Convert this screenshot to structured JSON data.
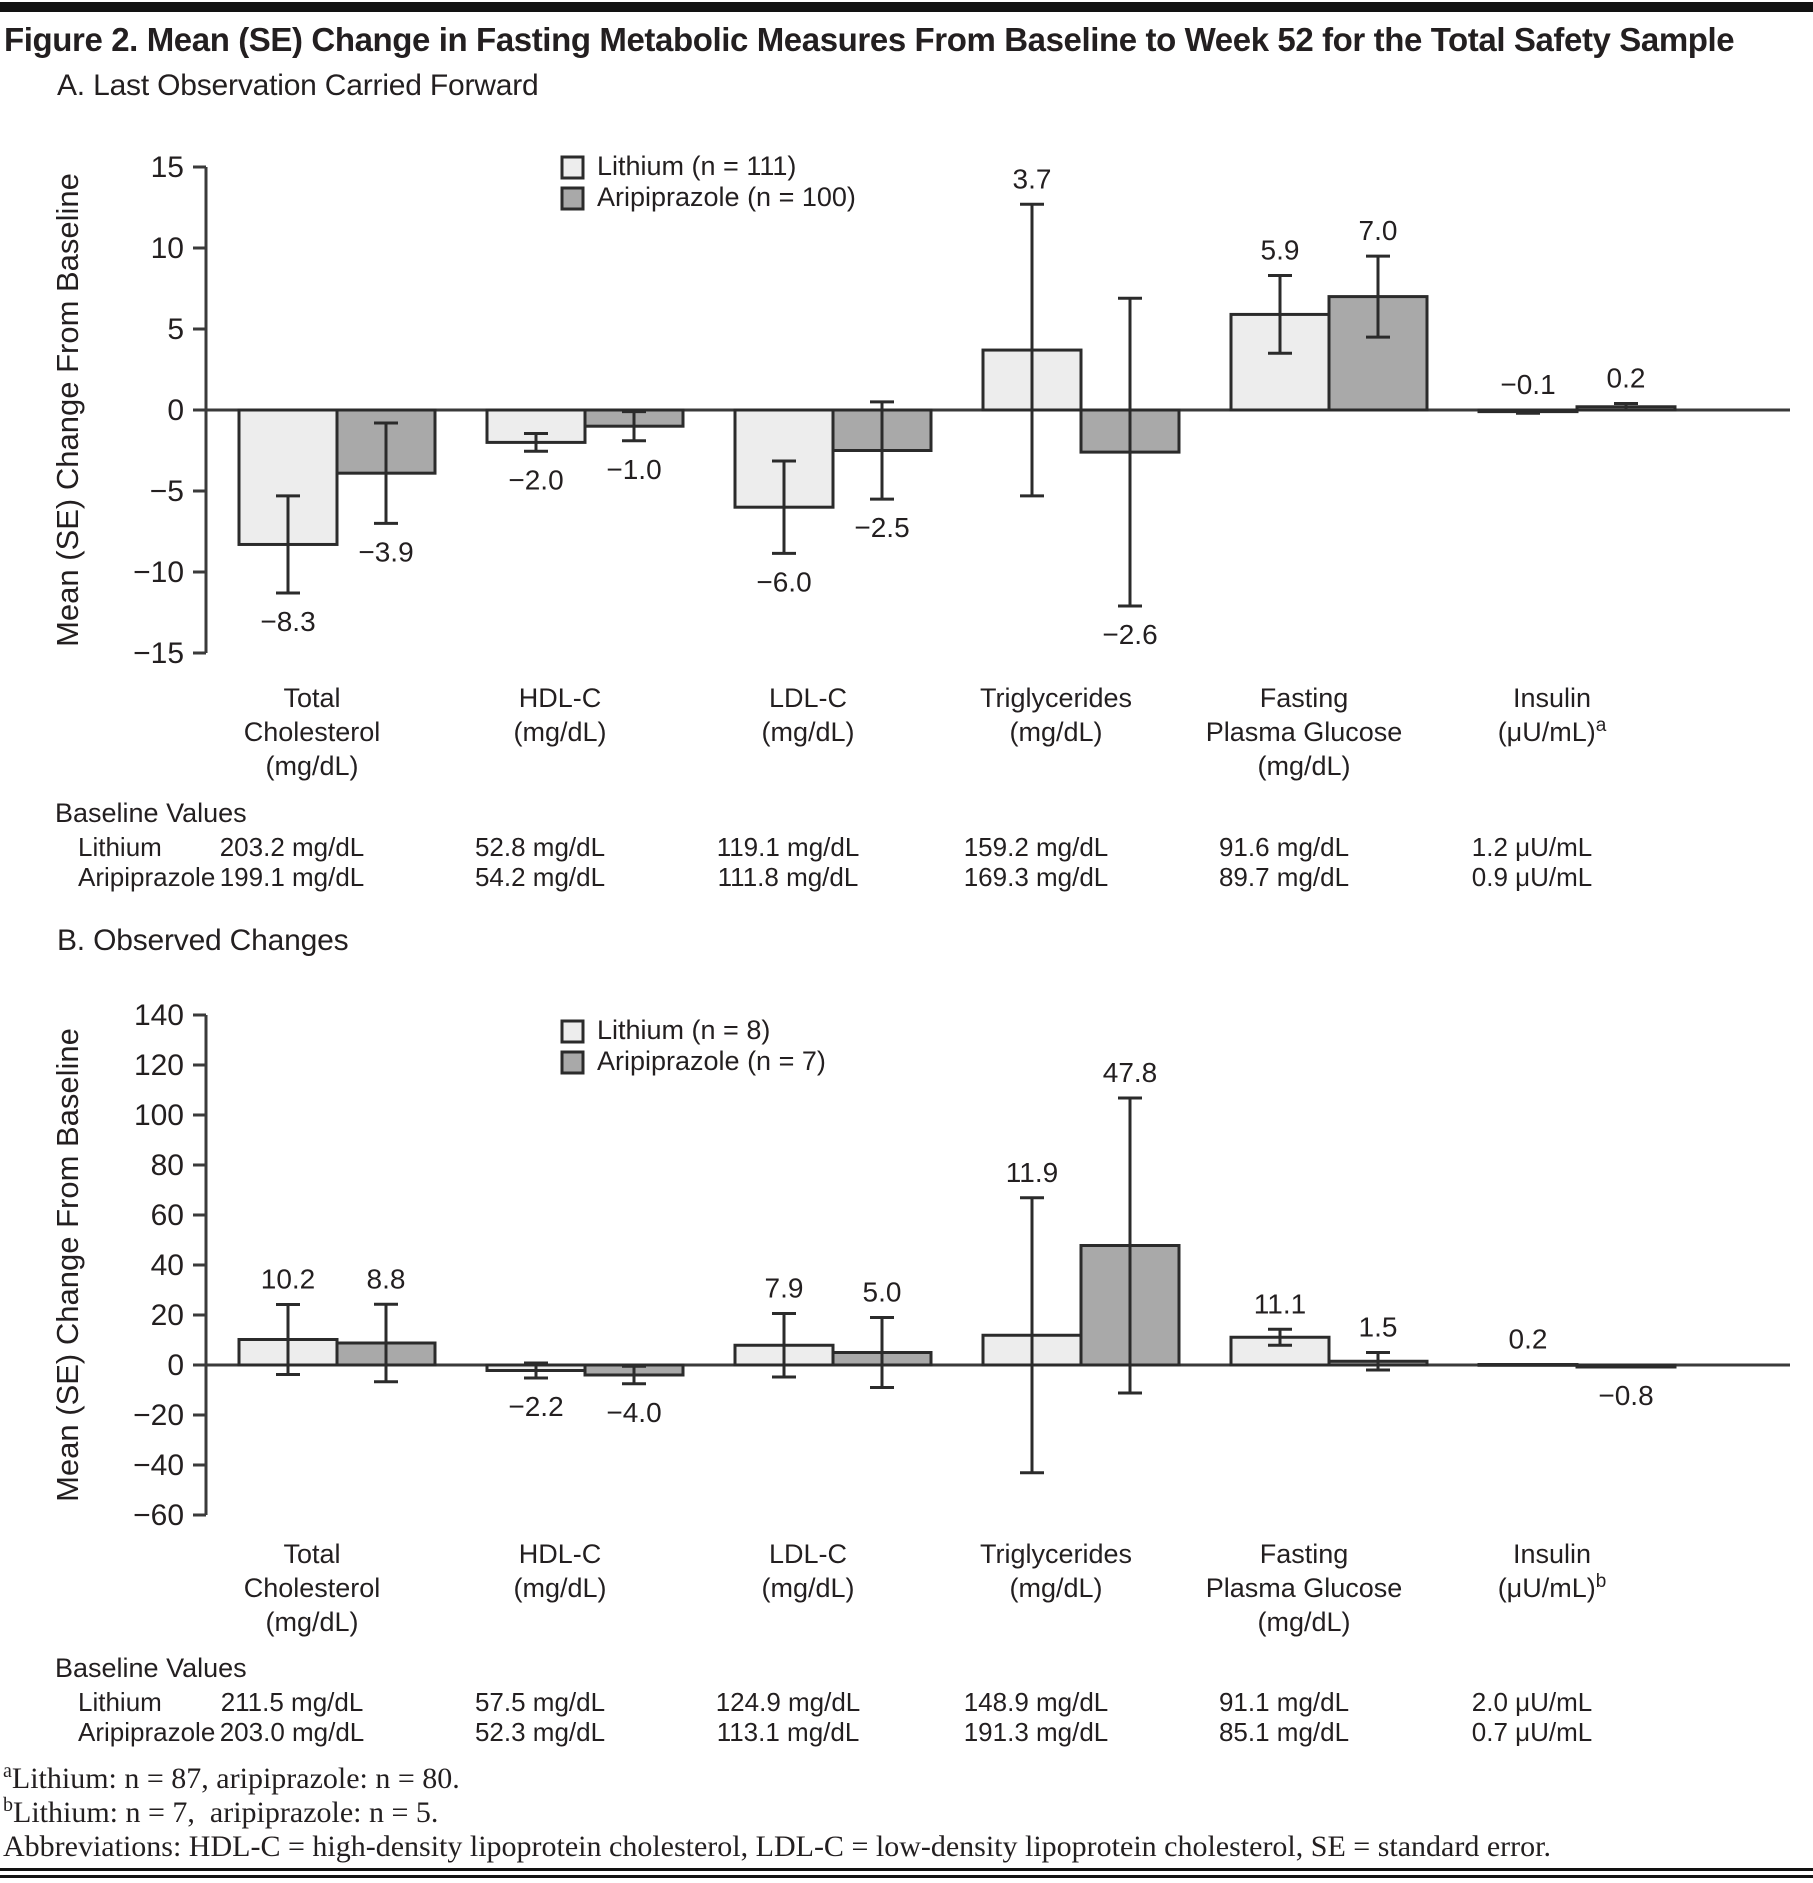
{
  "title": "Figure 2. Mean (SE) Change in Fasting Metabolic Measures From Baseline to Week 52 for the Total Safety Sample",
  "colors": {
    "lithium": "#ededed",
    "aripiprazole": "#a9a9a9",
    "bar_stroke": "#2b2b2b",
    "axis": "#3a3a3a",
    "text": "#231f20",
    "rule": "#121212"
  },
  "chart_data": [
    {
      "type": "bar",
      "panel_label": "A. Last Observation Carried Forward",
      "ylabel": "Mean (SE) Change From Baseline",
      "ylim": [
        -15,
        15
      ],
      "ytick_step": 5,
      "grid": false,
      "legend_position": "top-center",
      "legend": [
        "Lithium (n = 111)",
        "Aripiprazole (n = 100)"
      ],
      "categories": [
        {
          "lines": [
            "Total",
            "Cholesterol",
            "(mg/dL)"
          ]
        },
        {
          "lines": [
            "HDL-C",
            "(mg/dL)"
          ]
        },
        {
          "lines": [
            "LDL-C",
            "(mg/dL)"
          ]
        },
        {
          "lines": [
            "Triglycerides",
            "(mg/dL)"
          ]
        },
        {
          "lines": [
            "Fasting",
            "Plasma Glucose",
            "(mg/dL)"
          ]
        },
        {
          "lines": [
            "Insulin",
            "(μU/mL)"
          ],
          "sup": "a"
        }
      ],
      "series": [
        {
          "name": "Lithium",
          "color": "lithium",
          "values": [
            -8.3,
            -2.0,
            -6.0,
            3.7,
            5.9,
            -0.1
          ],
          "se": [
            3.0,
            0.55,
            2.85,
            9.0,
            2.4,
            0.1
          ],
          "label_above": [
            5
          ]
        },
        {
          "name": "Aripiprazole",
          "color": "aripiprazole",
          "values": [
            -3.9,
            -1.0,
            -2.5,
            -2.6,
            7.0,
            0.2
          ],
          "se": [
            3.1,
            0.9,
            3.0,
            9.5,
            2.5,
            0.2
          ],
          "label_above": [
            5
          ]
        }
      ],
      "baseline_values": {
        "heading": "Baseline Values",
        "rows": [
          {
            "name": "Lithium",
            "values": [
              "203.2 mg/dL",
              "52.8 mg/dL",
              "119.1 mg/dL",
              "159.2 mg/dL",
              "91.6 mg/dL",
              "1.2 μU/mL"
            ]
          },
          {
            "name": "Aripiprazole",
            "values": [
              "199.1 mg/dL",
              "54.2 mg/dL",
              "111.8 mg/dL",
              "169.3 mg/dL",
              "89.7 mg/dL",
              "0.9 μU/mL"
            ]
          }
        ]
      }
    },
    {
      "type": "bar",
      "panel_label": "B. Observed Changes",
      "ylabel": "Mean (SE) Change From Baseline",
      "ylim": [
        -60,
        140
      ],
      "ytick_step": 20,
      "grid": false,
      "legend_position": "top-center",
      "legend": [
        "Lithium (n = 8)",
        "Aripiprazole (n = 7)"
      ],
      "categories": [
        {
          "lines": [
            "Total",
            "Cholesterol",
            "(mg/dL)"
          ]
        },
        {
          "lines": [
            "HDL-C",
            "(mg/dL)"
          ]
        },
        {
          "lines": [
            "LDL-C",
            "(mg/dL)"
          ]
        },
        {
          "lines": [
            "Triglycerides",
            "(mg/dL)"
          ]
        },
        {
          "lines": [
            "Fasting",
            "Plasma Glucose",
            "(mg/dL)"
          ]
        },
        {
          "lines": [
            "Insulin",
            "(μU/mL)"
          ],
          "sup": "b"
        }
      ],
      "series": [
        {
          "name": "Lithium",
          "color": "lithium",
          "values": [
            10.2,
            -2.2,
            7.9,
            11.9,
            11.1,
            0.2
          ],
          "se": [
            14.0,
            3.0,
            12.7,
            55.0,
            3.2,
            0
          ],
          "label_above": []
        },
        {
          "name": "Aripiprazole",
          "color": "aripiprazole",
          "values": [
            8.8,
            -4.0,
            5.0,
            47.8,
            1.5,
            -0.8
          ],
          "se": [
            15.5,
            3.5,
            14.0,
            59.0,
            3.5,
            0
          ],
          "label_above": []
        }
      ],
      "baseline_values": {
        "heading": "Baseline Values",
        "rows": [
          {
            "name": "Lithium",
            "values": [
              "211.5 mg/dL",
              "57.5 mg/dL",
              "124.9 mg/dL",
              "148.9 mg/dL",
              "91.1 mg/dL",
              "2.0 μU/mL"
            ]
          },
          {
            "name": "Aripiprazole",
            "values": [
              "203.0 mg/dL",
              "52.3 mg/dL",
              "113.1 mg/dL",
              "191.3 mg/dL",
              "85.1 mg/dL",
              "0.7 μU/mL"
            ]
          }
        ]
      }
    }
  ],
  "footnotes": [
    {
      "sup": "a",
      "text": "Lithium: n = 87, aripiprazole: n = 80."
    },
    {
      "sup": "b",
      "text": "Lithium: n = 7,  aripiprazole: n = 5."
    },
    {
      "sup": "",
      "text": "Abbreviations: HDL-C = high-density lipoprotein cholesterol, LDL-C = low-density lipoprotein cholesterol, SE = standard error."
    }
  ]
}
